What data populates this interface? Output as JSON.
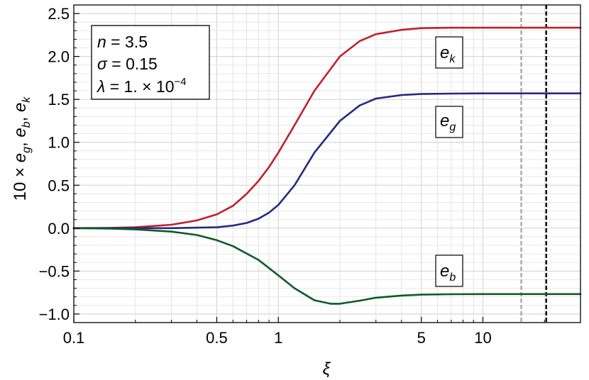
{
  "chart_data": {
    "type": "line",
    "xlabel": "ξ",
    "ylabel": {
      "prefix": "10 × ",
      "parts": [
        {
          "base": "e",
          "sub": "g"
        },
        {
          "base": "e",
          "sub": "b"
        },
        {
          "base": "e",
          "sub": "k"
        }
      ]
    },
    "x_scale": "log",
    "xlim": [
      0.1,
      30
    ],
    "ylim": [
      -1.1,
      2.6
    ],
    "x_ticks": [
      {
        "value": 0.1,
        "label": "0.1"
      },
      {
        "value": 0.5,
        "label": "0.5"
      },
      {
        "value": 1,
        "label": "1"
      },
      {
        "value": 5,
        "label": "5"
      },
      {
        "value": 10,
        "label": "10"
      }
    ],
    "y_ticks": [
      {
        "value": -1.0,
        "label": "−1.0"
      },
      {
        "value": -0.5,
        "label": "−0.5"
      },
      {
        "value": 0.0,
        "label": "0.0"
      },
      {
        "value": 0.5,
        "label": "0.5"
      },
      {
        "value": 1.0,
        "label": "1.0"
      },
      {
        "value": 1.5,
        "label": "1.5"
      },
      {
        "value": 2.0,
        "label": "2.0"
      },
      {
        "value": 2.5,
        "label": "2.5"
      }
    ],
    "grid": true,
    "series": [
      {
        "name": "e_k",
        "label_base": "e",
        "label_sub": "k",
        "color": "#c0202a",
        "x": [
          0.1,
          0.15,
          0.2,
          0.3,
          0.4,
          0.5,
          0.6,
          0.7,
          0.8,
          0.9,
          1.0,
          1.2,
          1.5,
          2.0,
          2.5,
          3.0,
          4.0,
          5.0,
          7.0,
          10.0,
          15.0,
          20.0,
          30.0
        ],
        "y": [
          0.0,
          0.003,
          0.01,
          0.04,
          0.09,
          0.16,
          0.26,
          0.4,
          0.55,
          0.71,
          0.88,
          1.2,
          1.6,
          2.0,
          2.18,
          2.26,
          2.31,
          2.33,
          2.335,
          2.335,
          2.335,
          2.335,
          2.335
        ]
      },
      {
        "name": "e_g",
        "label_base": "e",
        "label_sub": "g",
        "color": "#262a80",
        "x": [
          0.1,
          0.2,
          0.3,
          0.5,
          0.6,
          0.7,
          0.8,
          0.9,
          1.0,
          1.2,
          1.5,
          2.0,
          2.5,
          3.0,
          4.0,
          5.0,
          7.0,
          10.0,
          15.0,
          20.0,
          30.0
        ],
        "y": [
          0.0,
          0.0,
          0.0,
          0.01,
          0.03,
          0.06,
          0.11,
          0.18,
          0.27,
          0.5,
          0.88,
          1.25,
          1.43,
          1.51,
          1.55,
          1.563,
          1.568,
          1.57,
          1.57,
          1.57,
          1.57
        ]
      },
      {
        "name": "e_b",
        "label_base": "e",
        "label_sub": "b",
        "color": "#0d5a2a",
        "x": [
          0.1,
          0.15,
          0.2,
          0.3,
          0.4,
          0.5,
          0.6,
          0.8,
          1.0,
          1.2,
          1.5,
          1.8,
          2.0,
          2.5,
          3.0,
          4.0,
          5.0,
          7.0,
          10.0,
          15.0,
          20.0,
          30.0
        ],
        "y": [
          0.0,
          -0.005,
          -0.015,
          -0.04,
          -0.08,
          -0.14,
          -0.21,
          -0.37,
          -0.55,
          -0.7,
          -0.84,
          -0.88,
          -0.88,
          -0.845,
          -0.81,
          -0.785,
          -0.775,
          -0.77,
          -0.768,
          -0.768,
          -0.768,
          -0.768
        ]
      }
    ],
    "vertical_lines": [
      {
        "x": 15.4,
        "color": "#a8a8a8",
        "style": "dashed"
      },
      {
        "x": 20.4,
        "color": "#000000",
        "style": "dashed"
      }
    ],
    "annotations": {
      "params": [
        {
          "sym": "n",
          "text": " = 3.5"
        },
        {
          "sym": "σ",
          "text": " = 0.15"
        },
        {
          "sym": "λ",
          "text": " = 1. × 10",
          "sup": "−4"
        }
      ]
    }
  }
}
